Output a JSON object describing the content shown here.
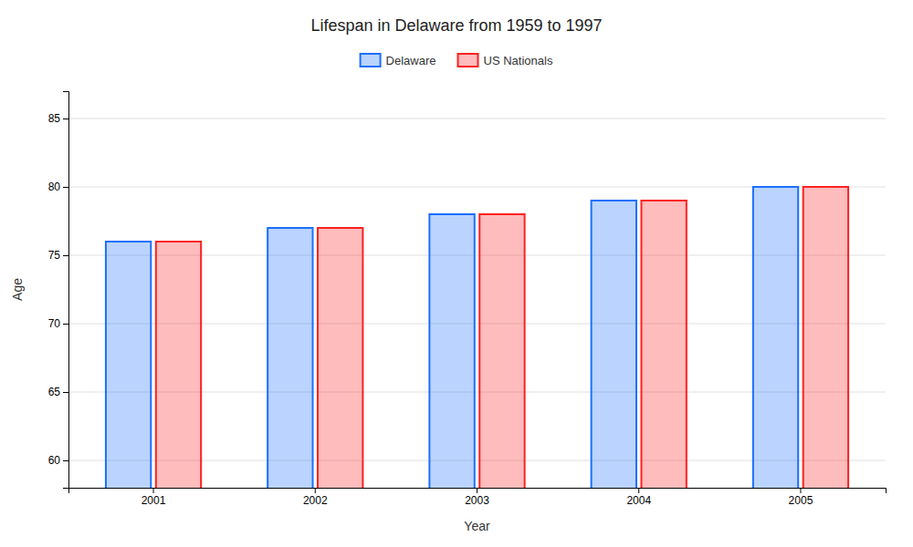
{
  "chart_data": {
    "type": "bar",
    "title": "Lifespan in Delaware from 1959 to 1997",
    "x_label": "Year",
    "y_label": "Age",
    "categories": [
      "2001",
      "2002",
      "2003",
      "2004",
      "2005"
    ],
    "series": [
      {
        "name": "Delaware",
        "color": "#1a6fff",
        "values": [
          76,
          77,
          78,
          79,
          80
        ]
      },
      {
        "name": "US Nationals",
        "color": "#ff2020",
        "values": [
          76,
          77,
          78,
          79,
          80
        ]
      }
    ],
    "ylim": [
      58,
      87
    ],
    "yticks": [
      60,
      65,
      70,
      75,
      80,
      85
    ],
    "grid": true,
    "legend": "top"
  }
}
